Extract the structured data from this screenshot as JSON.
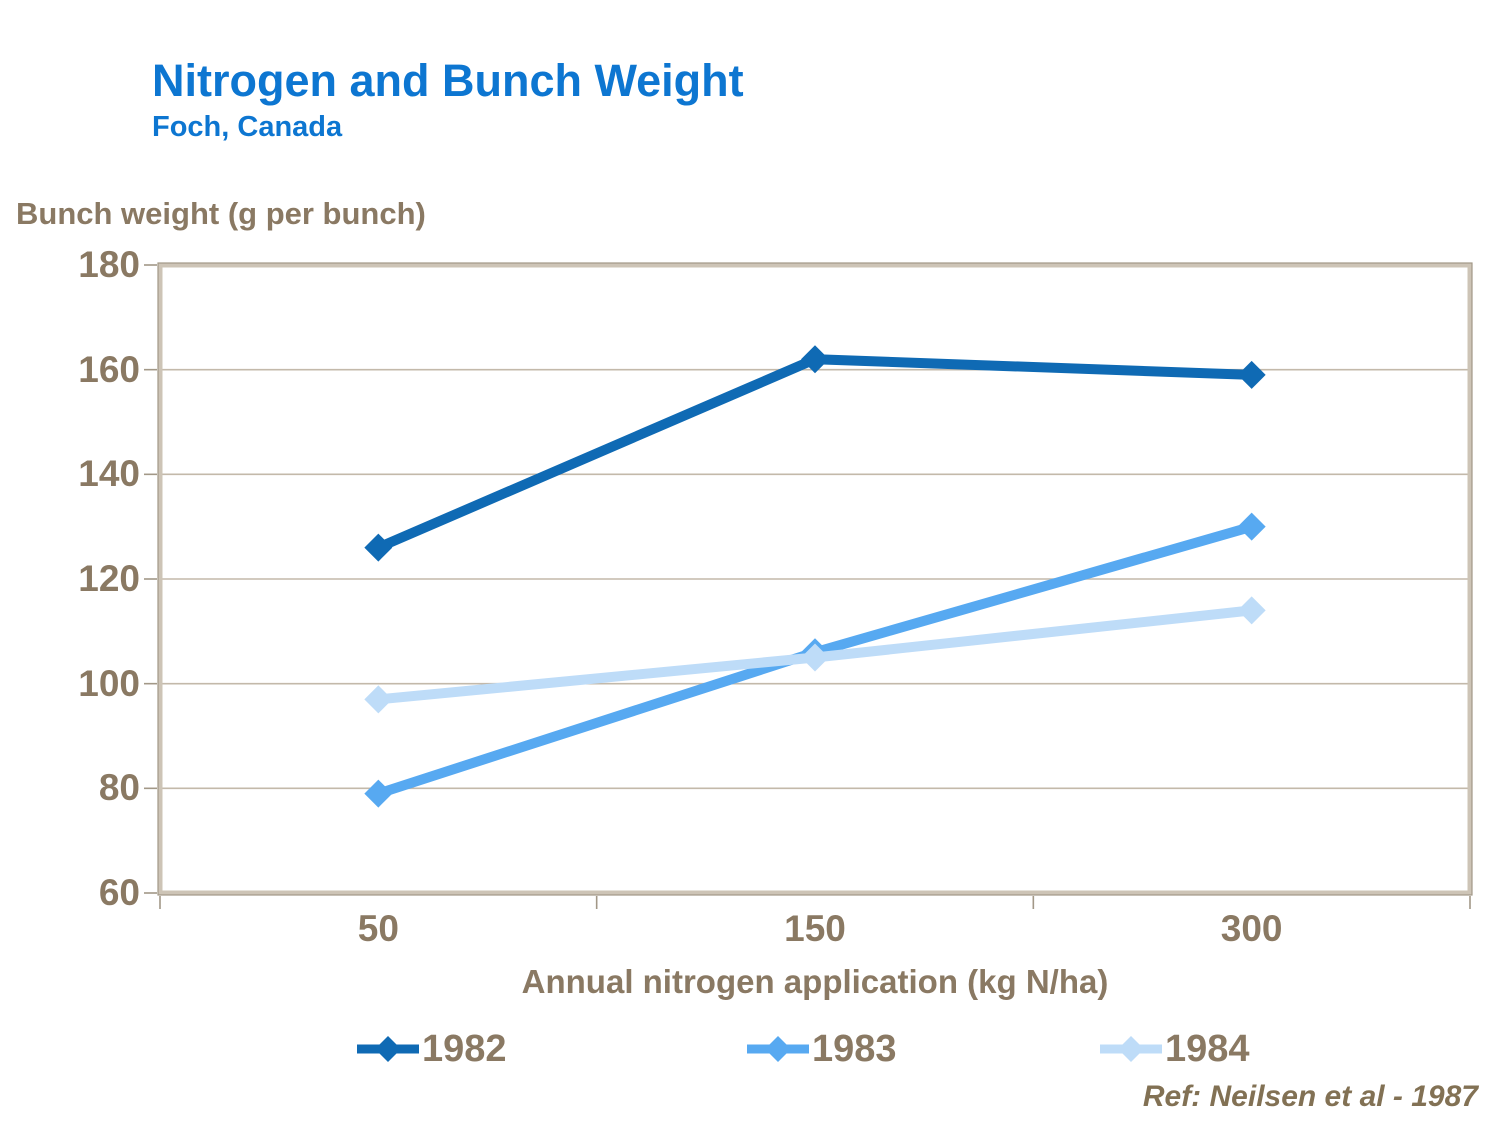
{
  "header": {
    "title": "Nitrogen and Bunch Weight",
    "subtitle": "Foch, Canada"
  },
  "footer": {
    "reference": "Ref: Neilsen et al - 1987"
  },
  "chart_data": {
    "type": "line",
    "title": "Nitrogen and Bunch Weight",
    "subtitle": "Foch, Canada",
    "xlabel": "Annual nitrogen application (kg N/ha)",
    "ylabel": "Bunch weight (g per bunch)",
    "categories": [
      "50",
      "150",
      "300"
    ],
    "series": [
      {
        "name": "1982",
        "values": [
          126,
          162,
          159
        ],
        "color": "#0f6ab4"
      },
      {
        "name": "1983",
        "values": [
          79,
          106,
          130
        ],
        "color": "#57a9f1"
      },
      {
        "name": "1984",
        "values": [
          97,
          105,
          114
        ],
        "color": "#bedcf8"
      }
    ],
    "ylim": [
      60,
      180
    ],
    "ytick_step": 20,
    "yticks": [
      180,
      160,
      140,
      120,
      100,
      80,
      60
    ],
    "grid": "horizontal",
    "legend_position": "bottom",
    "marker": "diamond"
  },
  "colors": {
    "background": "#ffffff",
    "title": "#0d76d1",
    "axis_text": "#8a7963",
    "reference_text": "#827154",
    "gridline": "#c3b9aa",
    "frame_light": "#cdc4b6",
    "frame_dark": "#a29887"
  }
}
